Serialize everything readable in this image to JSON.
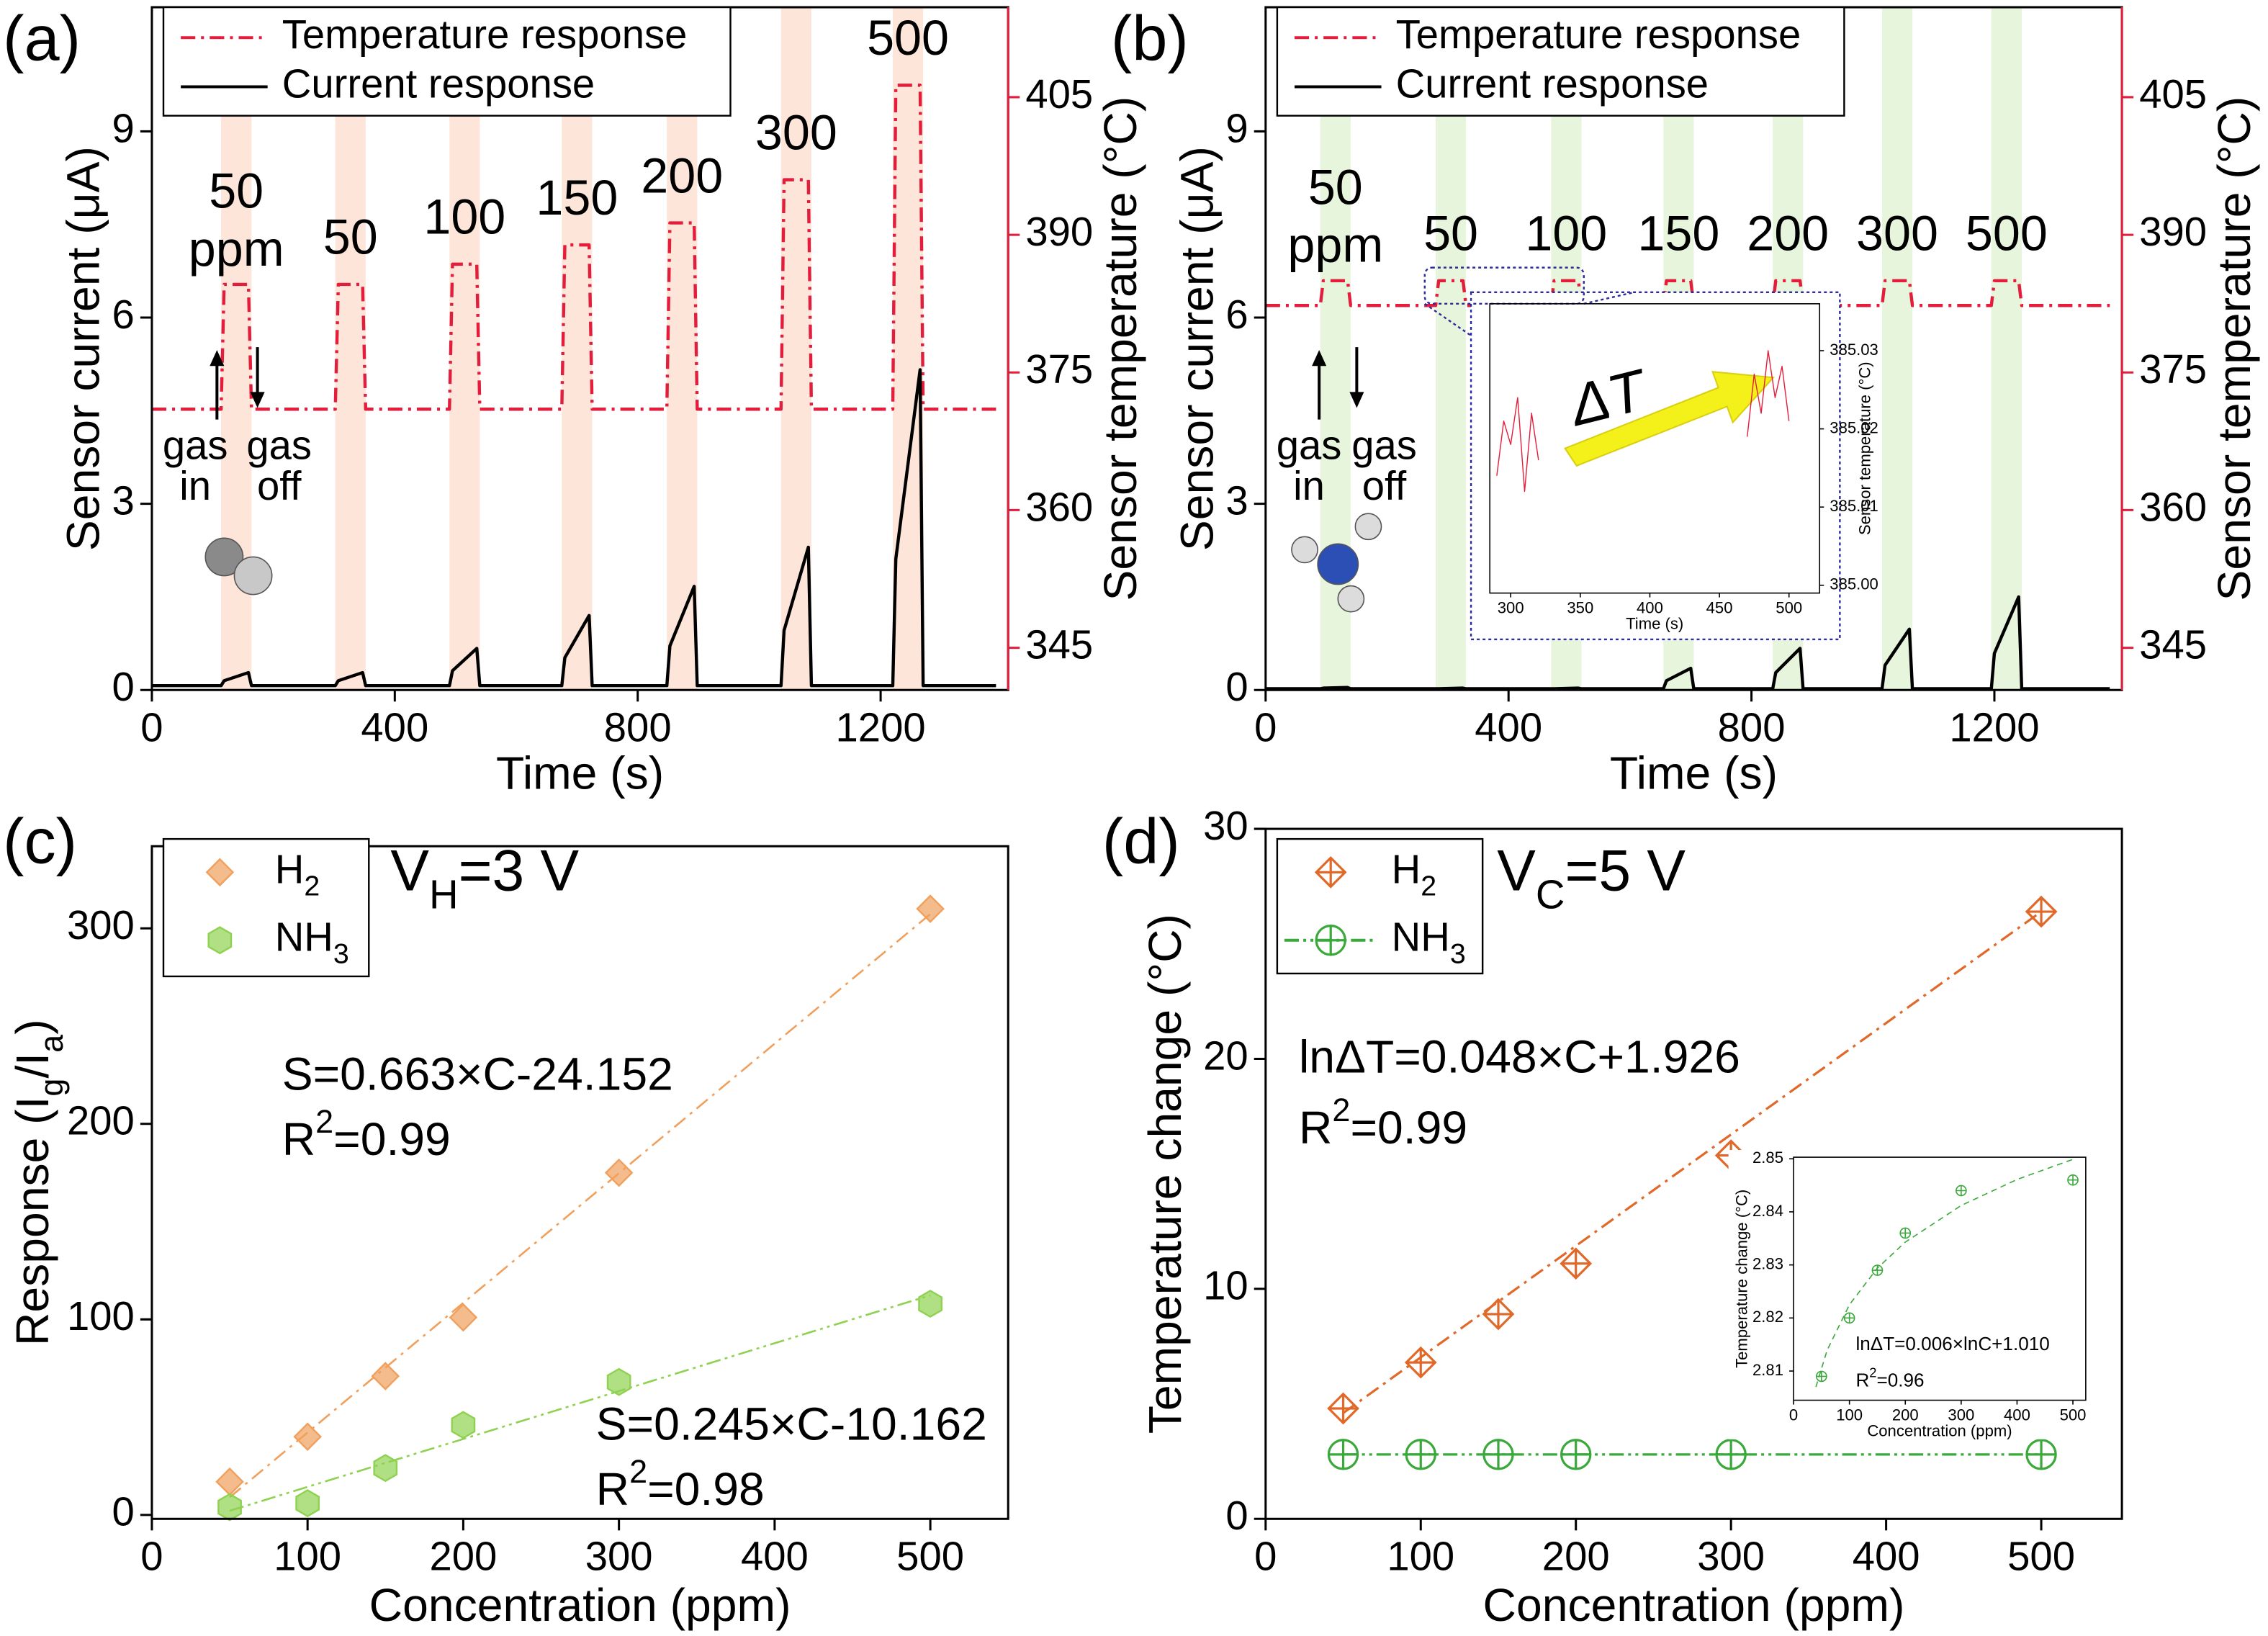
{
  "chart_data": [
    {
      "type": "line",
      "panel_label": "(a)",
      "xlabel": "Time (s)",
      "ylabel": "Sensor current (μA)",
      "y2label": "Sensor temperature (°C)",
      "x": [
        0,
        114,
        119,
        159,
        164,
        302,
        307,
        347,
        352,
        490,
        495,
        535,
        540,
        675,
        680,
        720,
        725,
        848,
        853,
        893,
        898,
        1036,
        1041,
        1081,
        1086,
        1220,
        1225,
        1265,
        1270,
        1390
      ],
      "series": [
        {
          "name": "Temperature response",
          "color": "#e31e3c",
          "style": "dashdot",
          "axis": "y2",
          "values": [
            371,
            371,
            384.6,
            384.6,
            371,
            371,
            384.6,
            384.6,
            371,
            371,
            386.8,
            386.8,
            371,
            371,
            388.9,
            388.9,
            371,
            371,
            391.3,
            391.3,
            371,
            371,
            396.0,
            396.0,
            371,
            371,
            406.3,
            406.3,
            371,
            371
          ]
        },
        {
          "name": "Current response",
          "color": "#000000",
          "values": [
            0.07,
            0.07,
            0.15,
            0.28,
            0.07,
            0.07,
            0.15,
            0.28,
            0.07,
            0.07,
            0.31,
            0.67,
            0.07,
            0.07,
            0.52,
            1.2,
            0.07,
            0.07,
            0.71,
            1.67,
            0.07,
            0.07,
            0.96,
            2.3,
            0.07,
            0.07,
            2.11,
            5.16,
            0.07,
            0.07
          ]
        }
      ],
      "xlim": [
        0,
        1410
      ],
      "xticks": [
        0,
        400,
        800,
        1200
      ],
      "ylim": [
        0,
        11
      ],
      "yticks": [
        0,
        3,
        6,
        9
      ],
      "y2lim": [
        340.4,
        414.8
      ],
      "y2ticks": [
        345,
        360,
        375,
        390,
        405
      ],
      "shaded_intervals": [
        [
          114,
          164
        ],
        [
          302,
          352
        ],
        [
          490,
          540
        ],
        [
          675,
          725
        ],
        [
          848,
          898
        ],
        [
          1036,
          1086
        ],
        [
          1220,
          1270
        ]
      ],
      "shade_color": "#fde5d9",
      "pulse_labels": [
        "50",
        "50",
        "100",
        "150",
        "200",
        "300",
        "500"
      ],
      "unit_label": "ppm",
      "arrow_labels": [
        [
          "gas",
          "in"
        ],
        [
          "gas",
          "off"
        ]
      ]
    },
    {
      "type": "line",
      "panel_label": "(b)",
      "xlabel": "Time (s)",
      "ylabel": "Sensor current (μA)",
      "y2label": "Sensor temperature (°C)",
      "x": [
        0,
        90,
        95,
        135,
        140,
        280,
        285,
        325,
        330,
        470,
        475,
        515,
        520,
        655,
        660,
        700,
        705,
        835,
        840,
        880,
        885,
        1015,
        1020,
        1060,
        1065,
        1195,
        1200,
        1240,
        1245,
        1390
      ],
      "series": [
        {
          "name": "Temperature response",
          "color": "#e31e3c",
          "style": "dashdot",
          "axis": "y2",
          "values": [
            382.3,
            382.3,
            385.0,
            385.0,
            382.3,
            382.3,
            385.0,
            385.0,
            382.3,
            382.3,
            385.0,
            385.0,
            382.3,
            382.3,
            385.0,
            385.0,
            382.3,
            382.3,
            385.0,
            385.0,
            382.3,
            382.3,
            385.0,
            385.0,
            382.3,
            382.3,
            385.0,
            385.0,
            382.3,
            382.3
          ]
        },
        {
          "name": "Current response",
          "color": "#000000",
          "values": [
            0.02,
            0.02,
            0.03,
            0.04,
            0.02,
            0.02,
            0.02,
            0.03,
            0.02,
            0.02,
            0.02,
            0.03,
            0.02,
            0.02,
            0.15,
            0.35,
            0.02,
            0.02,
            0.28,
            0.67,
            0.02,
            0.02,
            0.4,
            0.98,
            0.02,
            0.02,
            0.59,
            1.5,
            0.02,
            0.02
          ]
        }
      ],
      "xlim": [
        0,
        1410
      ],
      "xticks": [
        0,
        400,
        800,
        1200
      ],
      "ylim": [
        0,
        11
      ],
      "yticks": [
        0,
        3,
        6,
        9
      ],
      "y2lim": [
        340.4,
        414.8
      ],
      "y2ticks": [
        345,
        360,
        375,
        390,
        405
      ],
      "shaded_intervals": [
        [
          90,
          140
        ],
        [
          280,
          330
        ],
        [
          470,
          520
        ],
        [
          655,
          705
        ],
        [
          835,
          885
        ],
        [
          1015,
          1065
        ],
        [
          1195,
          1245
        ]
      ],
      "shade_color": "#e7f5dd",
      "pulse_labels": [
        "50",
        "50",
        "100",
        "150",
        "200",
        "300",
        "500"
      ],
      "unit_label": "ppm",
      "arrow_labels": [
        [
          "gas",
          "in"
        ],
        [
          "gas",
          "off"
        ]
      ]
    },
    {
      "type": "line",
      "xlabel": "Time (s)",
      "ylabel": "Sensor temperature (°C)",
      "x": [
        290,
        295,
        300,
        305,
        310,
        315,
        320,
        400,
        470,
        475,
        480,
        485,
        490,
        495,
        500
      ],
      "series": [
        {
          "color": "#e31e3c",
          "values": [
            385.014,
            385.021,
            385.018,
            385.024,
            385.012,
            385.022,
            385.016,
            null,
            385.019,
            385.027,
            385.022,
            385.03,
            385.024,
            385.028,
            385.021
          ]
        }
      ],
      "xlim": [
        285,
        522
      ],
      "xticks": [
        300,
        350,
        400,
        450,
        500
      ],
      "ylim": [
        384.999,
        385.036
      ],
      "yticks": [
        {
          "value": 385,
          "label": "385.00"
        },
        385.01,
        385.02,
        385.03
      ],
      "annotations": [
        {
          "text": "ΔT",
          "color": "#e31e3c"
        }
      ]
    },
    {
      "type": "scatter",
      "panel_label": "(c)",
      "xlabel": "Concentration (ppm)",
      "ylabel": [
        "Response (I",
        {
          "sub": "g"
        },
        "/I",
        {
          "sub": "a"
        },
        ")"
      ],
      "x": [
        50,
        100,
        150,
        200,
        300,
        500
      ],
      "series": [
        {
          "name": [
            "H",
            {
              "sub": "2"
            }
          ],
          "color": "#f0a05c",
          "marker": "diamond",
          "values": [
            17,
            40,
            71,
            101,
            175,
            310
          ]
        },
        {
          "name": [
            "NH",
            {
              "sub": "3"
            }
          ],
          "color": "#8fd150",
          "marker": "hexagon",
          "values": [
            4,
            6,
            24,
            46,
            68,
            108
          ]
        }
      ],
      "fits": [
        {
          "color": "#f0a05c",
          "style": "dashdot",
          "x": [
            50,
            500
          ],
          "values": [
            9.0,
            307.3
          ]
        },
        {
          "color": "#8fd150",
          "style": "dashdotdot",
          "x": [
            50,
            500
          ],
          "values": [
            2.1,
            112.3
          ]
        }
      ],
      "xlim": [
        0,
        550
      ],
      "xticks": [
        0,
        100,
        200,
        300,
        400,
        500
      ],
      "ylim": [
        -2,
        342
      ],
      "yticks": [
        0,
        100,
        200,
        300
      ],
      "annotations": [
        {
          "text": "S=0.663×C-24.152",
          "color": "#f0a05c"
        },
        {
          "text": [
            "R",
            {
              "sup": "2"
            },
            "=0.99"
          ],
          "color": "#f0a05c"
        },
        {
          "text": "S=0.245×C-10.162",
          "color": "#8fd150"
        },
        {
          "text": [
            "R",
            {
              "sup": "2"
            },
            "=0.98"
          ],
          "color": "#8fd150"
        },
        {
          "text": [
            "V",
            {
              "sub": "H"
            },
            "=3 V"
          ],
          "color": "#e31e3c"
        }
      ]
    },
    {
      "type": "scatter",
      "panel_label": "(d)",
      "xlabel": "Concentration (ppm)",
      "ylabel": "Temperature change (°C)",
      "x": [
        50,
        100,
        150,
        200,
        300,
        500
      ],
      "series": [
        {
          "name": [
            "H",
            {
              "sub": "2"
            }
          ],
          "color": "#e0692a",
          "marker": "diamond-cross",
          "values": [
            4.8,
            6.8,
            8.9,
            11.1,
            15.8,
            26.4
          ]
        },
        {
          "name": [
            "NH",
            {
              "sub": "3"
            }
          ],
          "color": "#3aa83a",
          "marker": "circle-cross",
          "line": "dashdotdot",
          "values": [
            2.8,
            2.8,
            2.8,
            2.8,
            2.8,
            2.8
          ]
        }
      ],
      "fits": [
        {
          "color": "#e0692a",
          "style": "dashdot",
          "x": [
            50,
            500
          ],
          "values": [
            4.6,
            26.4
          ]
        }
      ],
      "xlim": [
        0,
        552
      ],
      "xticks": [
        0,
        100,
        200,
        300,
        400,
        500
      ],
      "ylim": [
        0,
        30
      ],
      "yticks": [
        0,
        10,
        20,
        30
      ],
      "annotations": [
        {
          "text": "lnΔT=0.048×C+1.926",
          "color": "#e0692a"
        },
        {
          "text": [
            "R",
            {
              "sup": "2"
            },
            "=0.99"
          ],
          "color": "#e0692a"
        },
        {
          "text": [
            "V",
            {
              "sub": "C"
            },
            "=5 V"
          ],
          "color": "#000000"
        }
      ]
    },
    {
      "type": "scatter",
      "xlabel": "Concentration (ppm)",
      "ylabel": "Temperature change (°C)",
      "x": [
        50,
        100,
        150,
        200,
        300,
        500
      ],
      "series": [
        {
          "color": "#3aa83a",
          "marker": "circle-cross",
          "values": [
            2.809,
            2.82,
            2.829,
            2.836,
            2.844,
            2.846
          ]
        }
      ],
      "fits": [
        {
          "color": "#3aa83a",
          "style": "dash",
          "x": [
            40,
            60,
            100,
            150,
            200,
            300,
            400,
            500
          ],
          "values": [
            2.807,
            2.8139,
            2.8225,
            2.8294,
            2.8343,
            2.8412,
            2.8461,
            2.8499
          ]
        }
      ],
      "xlim": [
        0,
        523
      ],
      "xticks": [
        0,
        100,
        200,
        300,
        400,
        500
      ],
      "ylim": [
        2.8045,
        2.8503
      ],
      "yticks": [
        2.81,
        2.82,
        2.83,
        2.84,
        2.85
      ],
      "annotations": [
        {
          "text": "lnΔT=0.006×lnC+1.010",
          "color": "#3aa83a"
        },
        {
          "text": [
            "R",
            {
              "sup": "2"
            },
            "=0.96"
          ],
          "color": "#3aa83a"
        }
      ]
    }
  ]
}
